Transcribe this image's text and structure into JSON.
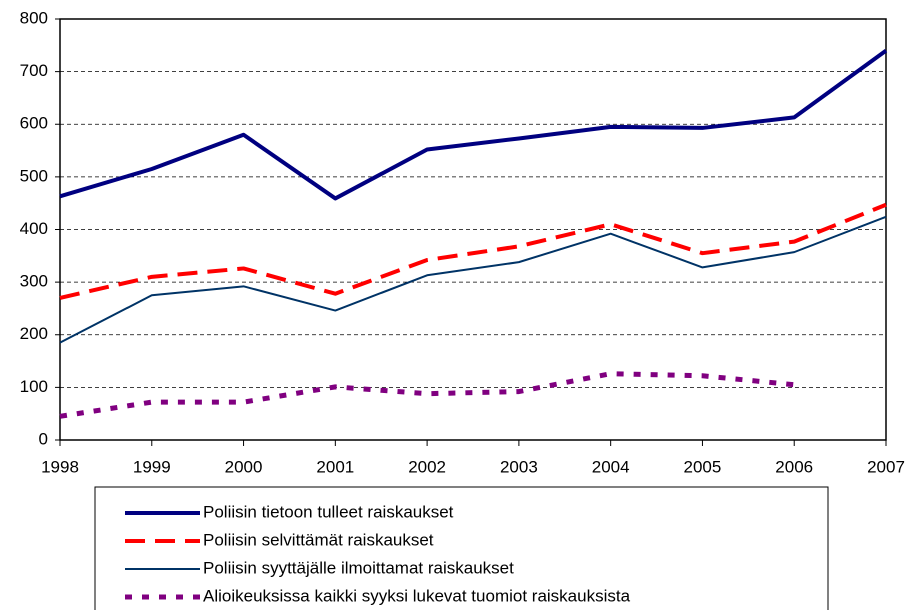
{
  "chart_data": {
    "type": "line",
    "x": [
      1998,
      1999,
      2000,
      2001,
      2002,
      2003,
      2004,
      2005,
      2006,
      2007
    ],
    "xlim": [
      1998,
      2007
    ],
    "xticks": [
      1998,
      1999,
      2000,
      2001,
      2002,
      2003,
      2004,
      2005,
      2006,
      2007
    ],
    "ylim": [
      0,
      800
    ],
    "yticks": [
      0,
      100,
      200,
      300,
      400,
      500,
      600,
      700,
      800
    ],
    "grid": true,
    "legend": "bottom",
    "series": [
      {
        "name": "Poliisin tietoon tulleet raiskaukset",
        "color": "#000080",
        "style": "solid-thick",
        "values": [
          463,
          515,
          580,
          459,
          552,
          573,
          595,
          593,
          613,
          740
        ]
      },
      {
        "name": "Poliisin selvittämät raiskaukset",
        "color": "#ff0000",
        "style": "dashed",
        "values": [
          270,
          310,
          326,
          278,
          342,
          368,
          410,
          355,
          377,
          447
        ]
      },
      {
        "name": "Poliisin syyttäjälle ilmoittamat raiskaukset",
        "color": "#003366",
        "style": "solid-thin",
        "values": [
          185,
          275,
          292,
          246,
          313,
          338,
          392,
          328,
          357,
          424
        ]
      },
      {
        "name": "Alioikeuksissa kaikki syyksi lukevat tuomiot raiskauksista",
        "color": "#800080",
        "style": "dotted",
        "values": [
          45,
          72,
          72,
          101,
          88,
          92,
          126,
          122,
          105,
          null
        ]
      }
    ]
  }
}
